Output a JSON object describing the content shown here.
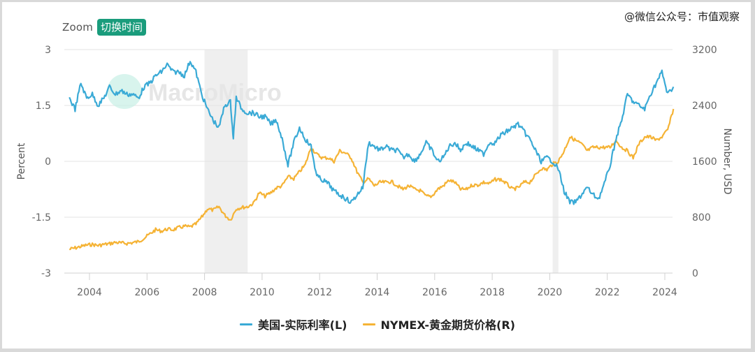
{
  "header": {
    "zoom_label": "Zoom",
    "switch_time_button": "切换时间",
    "wechat_watermark": "@微信公众号：市值观察"
  },
  "watermark": {
    "brand": "MacroMicro",
    "logo_text": "m"
  },
  "colors": {
    "real_rate": "#3aaad6",
    "gold": "#f5b335",
    "accent": "#1a9c7c",
    "recession": "#efefef",
    "grid": "#e3e3e3"
  },
  "legend": {
    "series_1": "美国-实际利率(L)",
    "series_2": "NYMEX-黄金期货价格(R)"
  },
  "axes": {
    "left_title": "Percent",
    "right_title": "Number, USD",
    "left_ticks": [
      "3",
      "1.5",
      "0",
      "-1.5",
      "-3"
    ],
    "right_ticks": [
      "3200",
      "2400",
      "1600",
      "800",
      "0"
    ],
    "x_ticks": [
      "2004",
      "2006",
      "2008",
      "2010",
      "2012",
      "2014",
      "2016",
      "2018",
      "2020",
      "2022",
      "2024"
    ]
  },
  "chart_data": {
    "type": "line",
    "title": "",
    "xlabel": "",
    "ylabel_left": "Percent",
    "ylabel_right": "Number, USD",
    "ylim_left": [
      -3,
      3
    ],
    "ylim_right": [
      0,
      3200
    ],
    "xlim": [
      2003.3,
      2024.3
    ],
    "grid": true,
    "legend_position": "bottom",
    "recession_bands": [
      [
        2008.0,
        2009.5
      ],
      [
        2020.1,
        2020.3
      ]
    ],
    "series": [
      {
        "name": "美国-实际利率(L)",
        "axis": "left",
        "x": [
          2003.3,
          2003.5,
          2003.7,
          2003.9,
          2004.1,
          2004.3,
          2004.5,
          2004.7,
          2004.9,
          2005.1,
          2005.3,
          2005.5,
          2005.7,
          2005.9,
          2006.1,
          2006.3,
          2006.5,
          2006.7,
          2006.9,
          2007.1,
          2007.3,
          2007.5,
          2007.7,
          2007.9,
          2008.1,
          2008.3,
          2008.5,
          2008.7,
          2008.9,
          2009.0,
          2009.1,
          2009.3,
          2009.5,
          2009.7,
          2009.9,
          2010.1,
          2010.3,
          2010.5,
          2010.7,
          2010.9,
          2011.1,
          2011.3,
          2011.5,
          2011.7,
          2011.9,
          2012.1,
          2012.3,
          2012.5,
          2012.7,
          2012.9,
          2013.1,
          2013.3,
          2013.5,
          2013.7,
          2013.9,
          2014.1,
          2014.3,
          2014.5,
          2014.7,
          2014.9,
          2015.1,
          2015.3,
          2015.5,
          2015.7,
          2015.9,
          2016.1,
          2016.3,
          2016.5,
          2016.7,
          2016.9,
          2017.1,
          2017.3,
          2017.5,
          2017.7,
          2017.9,
          2018.1,
          2018.3,
          2018.5,
          2018.7,
          2018.9,
          2019.1,
          2019.3,
          2019.5,
          2019.7,
          2019.9,
          2020.1,
          2020.3,
          2020.5,
          2020.7,
          2020.9,
          2021.1,
          2021.3,
          2021.5,
          2021.7,
          2021.9,
          2022.1,
          2022.3,
          2022.5,
          2022.7,
          2022.9,
          2023.1,
          2023.3,
          2023.5,
          2023.7,
          2023.9,
          2024.1,
          2024.3
        ],
        "values": [
          1.7,
          1.4,
          2.1,
          1.7,
          1.8,
          1.5,
          1.7,
          2.0,
          1.8,
          1.9,
          1.8,
          1.8,
          1.7,
          2.0,
          2.1,
          2.3,
          2.4,
          2.6,
          2.4,
          2.4,
          2.3,
          2.7,
          2.4,
          1.8,
          1.4,
          1.1,
          0.9,
          1.5,
          1.6,
          0.6,
          1.7,
          1.4,
          1.3,
          1.3,
          1.2,
          1.2,
          1.0,
          1.1,
          0.6,
          -0.1,
          0.5,
          0.9,
          0.6,
          0.4,
          -0.4,
          -0.5,
          -0.6,
          -0.8,
          -0.9,
          -1.0,
          -1.1,
          -0.9,
          -0.7,
          0.5,
          0.4,
          0.3,
          0.4,
          0.3,
          0.3,
          0.1,
          0.2,
          0.0,
          0.2,
          0.5,
          0.3,
          0.0,
          0.1,
          0.4,
          0.5,
          0.3,
          0.5,
          0.4,
          0.3,
          0.2,
          0.5,
          0.5,
          0.7,
          0.8,
          0.9,
          1.0,
          0.8,
          0.6,
          0.3,
          0.0,
          0.1,
          0.0,
          -0.2,
          -0.8,
          -1.1,
          -1.1,
          -0.9,
          -0.7,
          -0.9,
          -1.0,
          -0.6,
          -0.1,
          0.6,
          1.1,
          1.8,
          1.6,
          1.5,
          1.4,
          1.8,
          2.1,
          2.4,
          1.8,
          2.0
        ]
      },
      {
        "name": "NYMEX-黄金期货价格(R)",
        "axis": "right",
        "x": [
          2003.3,
          2003.5,
          2003.7,
          2003.9,
          2004.1,
          2004.3,
          2004.5,
          2004.7,
          2004.9,
          2005.1,
          2005.3,
          2005.5,
          2005.7,
          2005.9,
          2006.1,
          2006.3,
          2006.5,
          2006.7,
          2006.9,
          2007.1,
          2007.3,
          2007.5,
          2007.7,
          2007.9,
          2008.1,
          2008.3,
          2008.5,
          2008.7,
          2008.9,
          2009.1,
          2009.3,
          2009.5,
          2009.7,
          2009.9,
          2010.1,
          2010.3,
          2010.5,
          2010.7,
          2010.9,
          2011.1,
          2011.3,
          2011.5,
          2011.7,
          2011.9,
          2012.1,
          2012.3,
          2012.5,
          2012.7,
          2012.9,
          2013.1,
          2013.3,
          2013.5,
          2013.7,
          2013.9,
          2014.1,
          2014.3,
          2014.5,
          2014.7,
          2014.9,
          2015.1,
          2015.3,
          2015.5,
          2015.7,
          2015.9,
          2016.1,
          2016.3,
          2016.5,
          2016.7,
          2016.9,
          2017.1,
          2017.3,
          2017.5,
          2017.7,
          2017.9,
          2018.1,
          2018.3,
          2018.5,
          2018.7,
          2018.9,
          2019.1,
          2019.3,
          2019.5,
          2019.7,
          2019.9,
          2020.1,
          2020.3,
          2020.5,
          2020.7,
          2020.9,
          2021.1,
          2021.3,
          2021.5,
          2021.7,
          2021.9,
          2022.1,
          2022.3,
          2022.5,
          2022.7,
          2022.9,
          2023.1,
          2023.3,
          2023.5,
          2023.7,
          2023.9,
          2024.1,
          2024.3
        ],
        "values": [
          340,
          360,
          380,
          400,
          410,
          395,
          410,
          420,
          440,
          430,
          425,
          435,
          450,
          500,
          560,
          620,
          600,
          630,
          620,
          650,
          670,
          660,
          700,
          800,
          920,
          900,
          950,
          830,
          760,
          920,
          940,
          950,
          1000,
          1150,
          1100,
          1150,
          1220,
          1250,
          1380,
          1350,
          1450,
          1550,
          1800,
          1700,
          1650,
          1650,
          1600,
          1750,
          1720,
          1650,
          1450,
          1300,
          1350,
          1250,
          1300,
          1300,
          1310,
          1250,
          1200,
          1250,
          1200,
          1180,
          1100,
          1100,
          1200,
          1250,
          1330,
          1300,
          1200,
          1200,
          1260,
          1260,
          1300,
          1280,
          1340,
          1340,
          1280,
          1200,
          1220,
          1300,
          1300,
          1400,
          1500,
          1480,
          1560,
          1600,
          1750,
          1950,
          1900,
          1850,
          1750,
          1800,
          1800,
          1800,
          1800,
          1900,
          1800,
          1750,
          1650,
          1850,
          1950,
          1950,
          1900,
          1950,
          2050,
          2350
        ]
      }
    ]
  }
}
